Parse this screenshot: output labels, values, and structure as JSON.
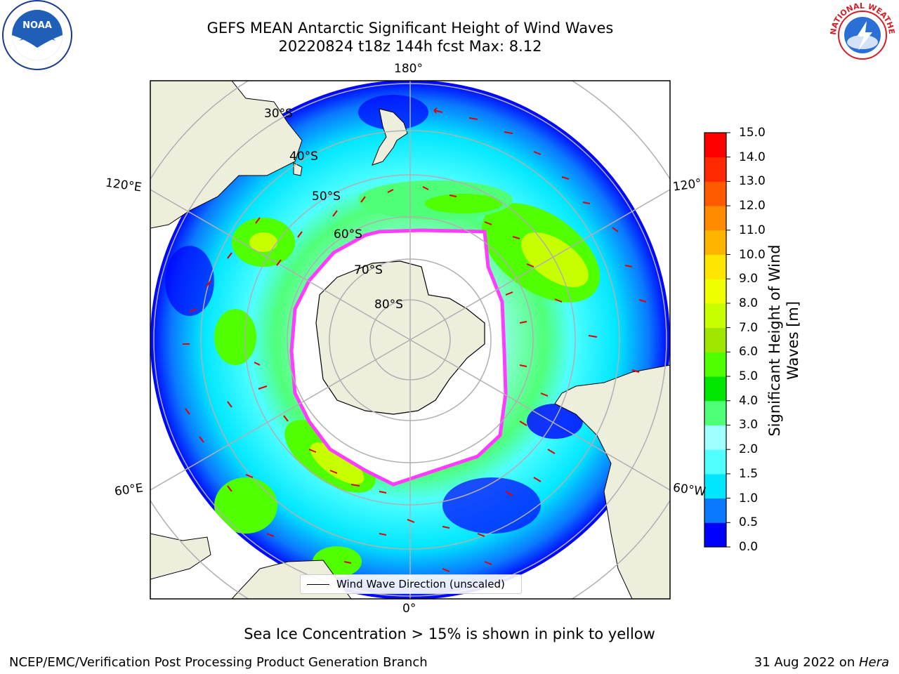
{
  "title": {
    "line1": "GEFS MEAN Antarctic Significant Height of Wind Waves",
    "line2": "20220824 t18z 144h fcst   Max: 8.12"
  },
  "logos": {
    "left": "NOAA",
    "right": "NATIONAL WEATHER SERVICE"
  },
  "map": {
    "longitude_labels": [
      "180°",
      "120°E",
      "120°",
      "60°E",
      "60°W",
      "0°"
    ],
    "latitude_labels": [
      "30°S",
      "40°S",
      "50°S",
      "60°S",
      "70°S",
      "80°S"
    ],
    "legend": "Wind Wave Direction (unscaled)"
  },
  "colorbar": {
    "label": "Significant Height of Wind Waves [m]",
    "ticks": [
      "0.0",
      "0.5",
      "1.0",
      "1.5",
      "2.0",
      "3.0",
      "4.0",
      "5.0",
      "6.0",
      "7.0",
      "8.0",
      "9.0",
      "10.0",
      "11.0",
      "12.0",
      "13.0",
      "14.0",
      "15.0"
    ],
    "colors": [
      "#0000ff",
      "#0a78ff",
      "#00e6ff",
      "#50ffff",
      "#a0ffff",
      "#50ff78",
      "#00e600",
      "#50ff00",
      "#a0e600",
      "#c8ff00",
      "#f0ff00",
      "#ffe600",
      "#ffb400",
      "#ff8c00",
      "#ff5a00",
      "#ff2800",
      "#ff0000"
    ]
  },
  "sea_ice_note": "Sea Ice Concentration > 15% is shown in pink to yellow",
  "footer": {
    "left": "NCEP/EMC/Verification Post Processing Product Generation Branch",
    "right_prefix": "31 Aug 2022 on ",
    "right_host": "Hera"
  }
}
